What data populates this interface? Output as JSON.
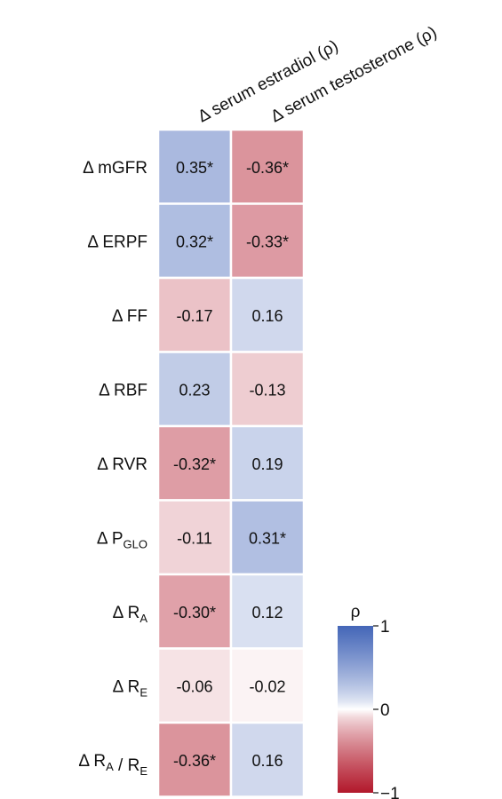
{
  "chart_data": {
    "type": "heatmap",
    "columns": [
      "Δ serum estradiol (ρ)",
      "Δ serum testosterone (ρ)"
    ],
    "rows": [
      {
        "prefix": "Δ ",
        "main": "mGFR",
        "sub": ""
      },
      {
        "prefix": "Δ ",
        "main": "ERPF",
        "sub": ""
      },
      {
        "prefix": "Δ ",
        "main": "FF",
        "sub": ""
      },
      {
        "prefix": "Δ ",
        "main": "RBF",
        "sub": ""
      },
      {
        "prefix": "Δ ",
        "main": "RVR",
        "sub": ""
      },
      {
        "prefix": "Δ ",
        "main": "P",
        "sub": "GLO"
      },
      {
        "prefix": "Δ ",
        "main": "R",
        "sub": "A"
      },
      {
        "prefix": "Δ ",
        "main": "R",
        "sub": "E"
      },
      {
        "prefix": "Δ ",
        "main": "R",
        "sub": "A",
        "mid": " / ",
        "main2": "R",
        "sub2": "E"
      }
    ],
    "values": [
      [
        0.35,
        -0.36
      ],
      [
        0.32,
        -0.33
      ],
      [
        -0.17,
        0.16
      ],
      [
        0.23,
        -0.13
      ],
      [
        -0.32,
        0.19
      ],
      [
        -0.11,
        0.31
      ],
      [
        -0.3,
        0.12
      ],
      [
        -0.06,
        -0.02
      ],
      [
        -0.36,
        0.16
      ]
    ],
    "labels": [
      [
        "0.35*",
        "-0.36*"
      ],
      [
        "0.32*",
        "-0.33*"
      ],
      [
        "-0.17",
        "0.16"
      ],
      [
        "0.23",
        "-0.13"
      ],
      [
        "-0.32*",
        "0.19"
      ],
      [
        "-0.11",
        "0.31*"
      ],
      [
        "-0.30*",
        "0.12"
      ],
      [
        "-0.06",
        "-0.02"
      ],
      [
        "-0.36*",
        "0.16"
      ]
    ],
    "colorbar": {
      "title": "ρ",
      "min": -1,
      "max": 1,
      "ticks": [
        1,
        0,
        -1
      ],
      "tick_labels": [
        "1",
        "0",
        "−1"
      ],
      "colors": {
        "negative": "#b2182b",
        "zero": "#ffffff",
        "positive": "#4466b8"
      }
    }
  }
}
